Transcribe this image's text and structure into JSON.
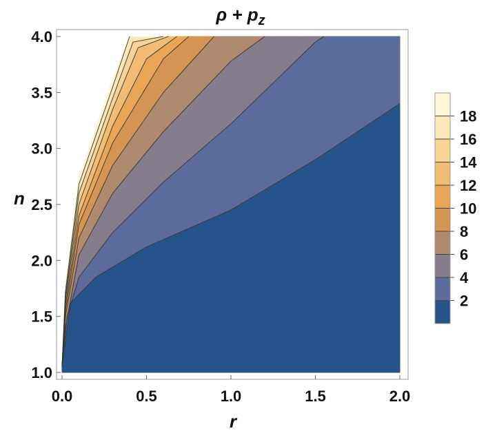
{
  "chart_data": {
    "type": "contour",
    "title": "ρ + p",
    "title_subscript": "z",
    "xlabel": "r",
    "ylabel": "n",
    "xlim": [
      0,
      2
    ],
    "ylim": [
      1,
      4
    ],
    "grid": false,
    "legend_position": "right",
    "x_ticks": [
      "0.0",
      "0.5",
      "1.0",
      "1.5",
      "2.0"
    ],
    "x_tick_values": [
      0,
      0.5,
      1,
      1.5,
      2
    ],
    "y_ticks": [
      "1.0",
      "1.5",
      "2.0",
      "2.5",
      "3.0",
      "3.5",
      "4.0"
    ],
    "y_tick_values": [
      1,
      1.5,
      2,
      2.5,
      3,
      3.5,
      4
    ],
    "contour_levels": [
      2,
      4,
      6,
      8,
      10,
      12,
      14,
      16,
      18
    ],
    "legend_labels": [
      "2",
      "4",
      "6",
      "8",
      "10",
      "12",
      "14",
      "16",
      "18"
    ],
    "legend_range": [
      0,
      20
    ],
    "band_colors": [
      "#26548a",
      "#5b6c9c",
      "#857d8b",
      "#b08a6e",
      "#d49453",
      "#e9a656",
      "#f1bc74",
      "#f8d495",
      "#fde8b8",
      "#fff6d8"
    ],
    "line_color": "#333333",
    "contour_lines": [
      {
        "level": 2,
        "points": [
          [
            0.0,
            1.05
          ],
          [
            0.05,
            1.62
          ],
          [
            0.2,
            1.85
          ],
          [
            0.5,
            2.12
          ],
          [
            1.0,
            2.45
          ],
          [
            1.5,
            2.9
          ],
          [
            2.0,
            3.4
          ]
        ]
      },
      {
        "level": 4,
        "points": [
          [
            0.0,
            1.05
          ],
          [
            0.03,
            1.5
          ],
          [
            0.1,
            1.85
          ],
          [
            0.3,
            2.25
          ],
          [
            0.6,
            2.7
          ],
          [
            1.0,
            3.22
          ],
          [
            1.5,
            3.95
          ],
          [
            1.55,
            4.0
          ]
        ]
      },
      {
        "level": 6,
        "points": [
          [
            0.0,
            1.05
          ],
          [
            0.02,
            1.4
          ],
          [
            0.1,
            2.05
          ],
          [
            0.3,
            2.6
          ],
          [
            0.6,
            3.15
          ],
          [
            1.0,
            3.78
          ],
          [
            1.2,
            4.0
          ]
        ]
      },
      {
        "level": 8,
        "points": [
          [
            0.0,
            1.05
          ],
          [
            0.02,
            1.5
          ],
          [
            0.1,
            2.2
          ],
          [
            0.3,
            2.85
          ],
          [
            0.6,
            3.5
          ],
          [
            0.9,
            4.0
          ]
        ]
      },
      {
        "level": 10,
        "points": [
          [
            0.0,
            1.05
          ],
          [
            0.02,
            1.55
          ],
          [
            0.1,
            2.32
          ],
          [
            0.3,
            3.05
          ],
          [
            0.6,
            3.8
          ],
          [
            0.75,
            4.0
          ]
        ]
      },
      {
        "level": 12,
        "points": [
          [
            0.0,
            1.05
          ],
          [
            0.02,
            1.6
          ],
          [
            0.1,
            2.4
          ],
          [
            0.3,
            3.2
          ],
          [
            0.5,
            3.8
          ],
          [
            0.68,
            4.0
          ]
        ]
      },
      {
        "level": 14,
        "points": [
          [
            0.0,
            1.05
          ],
          [
            0.02,
            1.65
          ],
          [
            0.1,
            2.5
          ],
          [
            0.3,
            3.35
          ],
          [
            0.45,
            3.9
          ],
          [
            0.63,
            4.0
          ]
        ]
      },
      {
        "level": 16,
        "points": [
          [
            0.0,
            1.05
          ],
          [
            0.02,
            1.68
          ],
          [
            0.1,
            2.6
          ],
          [
            0.3,
            3.45
          ],
          [
            0.42,
            3.95
          ],
          [
            0.6,
            4.0
          ]
        ]
      },
      {
        "level": 18,
        "points": [
          [
            0.0,
            1.05
          ],
          [
            0.02,
            1.72
          ],
          [
            0.1,
            2.68
          ],
          [
            0.3,
            3.55
          ],
          [
            0.4,
            4.0
          ],
          [
            0.58,
            4.0
          ]
        ]
      }
    ],
    "domain_edge": [
      [
        0.0,
        1.05
      ],
      [
        0.02,
        1.8
      ],
      [
        0.1,
        2.75
      ],
      [
        0.3,
        3.62
      ],
      [
        0.4,
        4.0
      ]
    ]
  }
}
